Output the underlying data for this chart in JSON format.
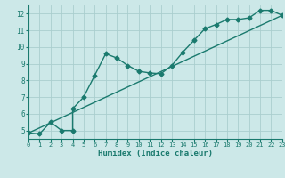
{
  "xlabel": "Humidex (Indice chaleur)",
  "ylabel": "",
  "bg_color": "#cce8e8",
  "grid_color": "#aacece",
  "line_color": "#1a7a6e",
  "xmin": 0,
  "xmax": 23,
  "ymin": 4.5,
  "ymax": 12.5,
  "xticks": [
    0,
    1,
    2,
    3,
    4,
    5,
    6,
    7,
    8,
    9,
    10,
    11,
    12,
    13,
    14,
    15,
    16,
    17,
    18,
    19,
    20,
    21,
    22,
    23
  ],
  "yticks": [
    5,
    6,
    7,
    8,
    9,
    10,
    11,
    12
  ],
  "line1_x": [
    0,
    1,
    2,
    3,
    4,
    4,
    5,
    6,
    7,
    8,
    9,
    10,
    11,
    12,
    13,
    14,
    15,
    16,
    17,
    18,
    19,
    20,
    21,
    22,
    23
  ],
  "line1_y": [
    4.85,
    4.8,
    5.5,
    5.0,
    5.0,
    6.3,
    7.0,
    8.3,
    9.6,
    9.35,
    8.9,
    8.55,
    8.45,
    8.4,
    8.9,
    9.7,
    10.4,
    11.1,
    11.35,
    11.65,
    11.65,
    11.75,
    12.2,
    12.2,
    11.9
  ],
  "line2_x": [
    0,
    23
  ],
  "line2_y": [
    4.85,
    11.9
  ],
  "marker": "D",
  "marker_size": 2.5,
  "line_width": 1.0
}
